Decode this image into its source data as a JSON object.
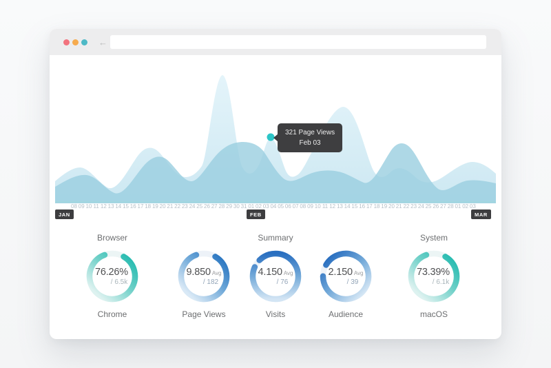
{
  "browser_chrome": {
    "traffic_lights": [
      {
        "name": "close",
        "color": "#f2737e"
      },
      {
        "name": "minimize",
        "color": "#f6ab4e"
      },
      {
        "name": "zoom",
        "color": "#4db9c6"
      }
    ],
    "back_icon": "←",
    "forward_icon": "→",
    "url_value": ""
  },
  "chart": {
    "tooltip": {
      "line1": "321 Page Views",
      "line2": "Feb 03"
    },
    "highlight": {
      "value": 321,
      "date": "Feb 03"
    },
    "colors": {
      "area_back": "#d5edf6",
      "area_front": "#aad7e5",
      "baseline": "#a2d6e0",
      "dot": "#2cc5c7"
    },
    "axis_labels": [
      "08",
      "09",
      "10",
      "11",
      "12",
      "13",
      "14",
      "15",
      "16",
      "17",
      "18",
      "19",
      "20",
      "21",
      "22",
      "23",
      "24",
      "25",
      "26",
      "27",
      "28",
      "29",
      "30",
      "31",
      "01",
      "02",
      "03",
      "04",
      "05",
      "06",
      "07",
      "08",
      "09",
      "10",
      "11",
      "12",
      "13",
      "14",
      "15",
      "16",
      "17",
      "18",
      "19",
      "20",
      "21",
      "22",
      "23",
      "24",
      "25",
      "26",
      "27",
      "28",
      "01",
      "02",
      "03"
    ],
    "months": [
      {
        "label": "JAN"
      },
      {
        "label": "FEB"
      },
      {
        "label": "MAR"
      }
    ]
  },
  "stats": {
    "headings": [
      {
        "label": "Browser"
      },
      {
        "label": "Summary"
      },
      {
        "label": "System"
      }
    ],
    "donuts": [
      {
        "value": "76.26%",
        "unit": "",
        "sub": "/ 6.5k",
        "label": "Chrome",
        "theme": "teal",
        "accent": "#29bcb1"
      },
      {
        "value": "9.850",
        "unit": "Avg",
        "sub": "/ 182",
        "label": "Page Views",
        "theme": "blue",
        "accent": "#2d78c2"
      },
      {
        "value": "4.150",
        "unit": "Avg",
        "sub": "/ 76",
        "label": "Visits",
        "theme": "blue",
        "accent": "#2d78c2"
      },
      {
        "value": "2.150",
        "unit": "Avg",
        "sub": "/ 39",
        "label": "Audience",
        "theme": "blue",
        "accent": "#2d78c2"
      },
      {
        "value": "73.39%",
        "unit": "",
        "sub": "/ 6.1k",
        "label": "macOS",
        "theme": "teal",
        "accent": "#29bcb1"
      }
    ]
  }
}
